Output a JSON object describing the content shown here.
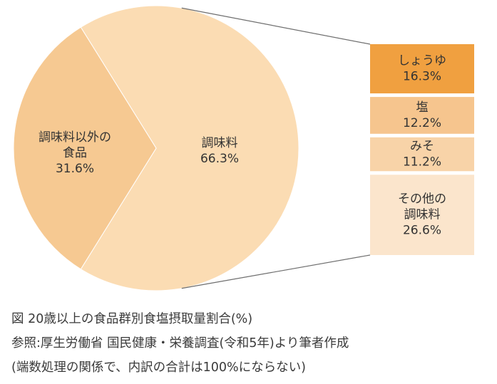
{
  "chart_data": {
    "type": "pie",
    "slices": [
      {
        "label_lines": [
          "調味料以外の",
          "食品"
        ],
        "value_text": "31.6%",
        "value": 31.6,
        "color": "#f6c992"
      },
      {
        "label_lines": [
          "調味料"
        ],
        "value_text": "66.3%",
        "value": 66.3,
        "color": "#fbdcb3"
      }
    ],
    "breakdown": [
      {
        "label_lines": [
          "しょうゆ"
        ],
        "value_text": "16.3%",
        "value": 16.3,
        "color": "#f0a040"
      },
      {
        "label_lines": [
          "塩"
        ],
        "value_text": "12.2%",
        "value": 12.2,
        "color": "#f6c58e"
      },
      {
        "label_lines": [
          "みそ"
        ],
        "value_text": "11.2%",
        "value": 11.2,
        "color": "#f8d3a8"
      },
      {
        "label_lines": [
          "その他の",
          "調味料"
        ],
        "value_text": "26.6%",
        "value": 26.6,
        "color": "#fbe5cc"
      }
    ]
  },
  "caption": {
    "line1": "図 20歳以上の食品群別食塩摂取量割合(%)",
    "line2": "参照:厚生労働省 国民健康・栄養調査(令和5年)より筆者作成",
    "line3": "(端数処理の関係で、内訳の合計は100%にならない)"
  }
}
